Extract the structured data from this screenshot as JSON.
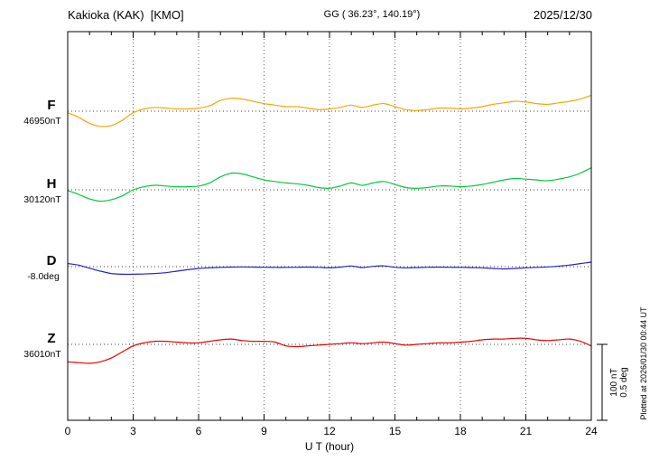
{
  "header": {
    "title": "Kakioka (KAK)  [KMO]",
    "coords": "GG ( 36.23°, 140.19°)",
    "date": "2025/12/30"
  },
  "footer": {
    "plotted_at": "Plotted at 2026/01/30 00:44 UT"
  },
  "scale_bar": {
    "amplitude_nt": "100 nT",
    "amplitude_deg": "0.5 deg"
  },
  "chart_data": {
    "type": "line",
    "title": "Kakioka (KAK) [KMO] magnetogram 2025/12/30",
    "xlabel": "U T (hour)",
    "x_range": [
      0,
      24
    ],
    "x_ticks": [
      0,
      3,
      6,
      9,
      12,
      15,
      18,
      21,
      24
    ],
    "grid": "dotted vertical at 3h; dotted horizontal baseline per trace",
    "scale": {
      "nT_per_bar": 100,
      "deg_per_bar": 0.5
    },
    "x": [
      0,
      0.5,
      1,
      1.5,
      2,
      2.5,
      3,
      3.5,
      4,
      4.5,
      5,
      5.5,
      6,
      6.5,
      7,
      7.5,
      8,
      8.5,
      9,
      9.5,
      10,
      10.5,
      11,
      11.5,
      12,
      12.5,
      13,
      13.5,
      14,
      14.5,
      15,
      15.5,
      16,
      16.5,
      17,
      17.5,
      18,
      18.5,
      19,
      19.5,
      20,
      20.5,
      21,
      21.5,
      22,
      22.5,
      23,
      23.5,
      24
    ],
    "series": [
      {
        "name": "F",
        "unit": "nT",
        "baseline": 46950,
        "value_label": "46950nT",
        "color": "#f5a800",
        "values": [
          46948,
          46942,
          46934,
          46930,
          46931,
          46938,
          46948,
          46953,
          46955,
          46954,
          46953,
          46953,
          46954,
          46957,
          46964,
          46967,
          46966,
          46963,
          46960,
          46958,
          46956,
          46956,
          46954,
          46952,
          46953,
          46955,
          46958,
          46955,
          46958,
          46960,
          46956,
          46952,
          46951,
          46952,
          46954,
          46954,
          46953,
          46954,
          46956,
          46959,
          46961,
          46963,
          46962,
          46960,
          46959,
          46961,
          46963,
          46966,
          46971
        ]
      },
      {
        "name": "H",
        "unit": "nT",
        "baseline": 30120,
        "value_label": "30120nT",
        "color": "#00c93c",
        "values": [
          30119,
          30114,
          30108,
          30105,
          30107,
          30112,
          30120,
          30124,
          30126,
          30125,
          30124,
          30124,
          30125,
          30129,
          30137,
          30142,
          30141,
          30137,
          30133,
          30131,
          30129,
          30128,
          30126,
          30123,
          30122,
          30125,
          30129,
          30126,
          30129,
          30131,
          30127,
          30123,
          30122,
          30123,
          30125,
          30125,
          30124,
          30125,
          30127,
          30130,
          30133,
          30135,
          30134,
          30133,
          30132,
          30134,
          30137,
          30142,
          30149
        ]
      },
      {
        "name": "D",
        "unit": "deg",
        "baseline": -8.0,
        "value_label": "-8.0deg",
        "color": "#2222cc",
        "values": [
          -7.98,
          -7.99,
          -8.01,
          -8.03,
          -8.045,
          -8.05,
          -8.05,
          -8.048,
          -8.045,
          -8.04,
          -8.03,
          -8.02,
          -8.012,
          -8.008,
          -8.005,
          -8.003,
          -8.002,
          -8.003,
          -8.004,
          -8.005,
          -8.005,
          -8.004,
          -8.003,
          -8.004,
          -8.008,
          -8.003,
          -7.996,
          -8.006,
          -7.998,
          -7.995,
          -8.004,
          -8.008,
          -8.006,
          -8.004,
          -8.003,
          -8.004,
          -8.005,
          -8.006,
          -8.008,
          -8.012,
          -8.015,
          -8.012,
          -8.008,
          -8.005,
          -8.002,
          -7.997,
          -7.99,
          -7.98,
          -7.97
        ]
      },
      {
        "name": "Z",
        "unit": "nT",
        "baseline": 36010,
        "value_label": "36010nT",
        "color": "#e60000",
        "values": [
          35987,
          35986,
          35985,
          35987,
          35992,
          36000,
          36008,
          36012,
          36014,
          36014,
          36013,
          36012,
          36012,
          36014,
          36016,
          36017,
          36015,
          36014,
          36014,
          36013,
          36008,
          36007,
          36008,
          36009,
          36010,
          36011,
          36012,
          36011,
          36012,
          36013,
          36011,
          36009,
          36010,
          36011,
          36012,
          36012,
          36013,
          36014,
          36016,
          36017,
          36017,
          36018,
          36018,
          36016,
          36015,
          36016,
          36017,
          36014,
          36008
        ]
      }
    ]
  }
}
